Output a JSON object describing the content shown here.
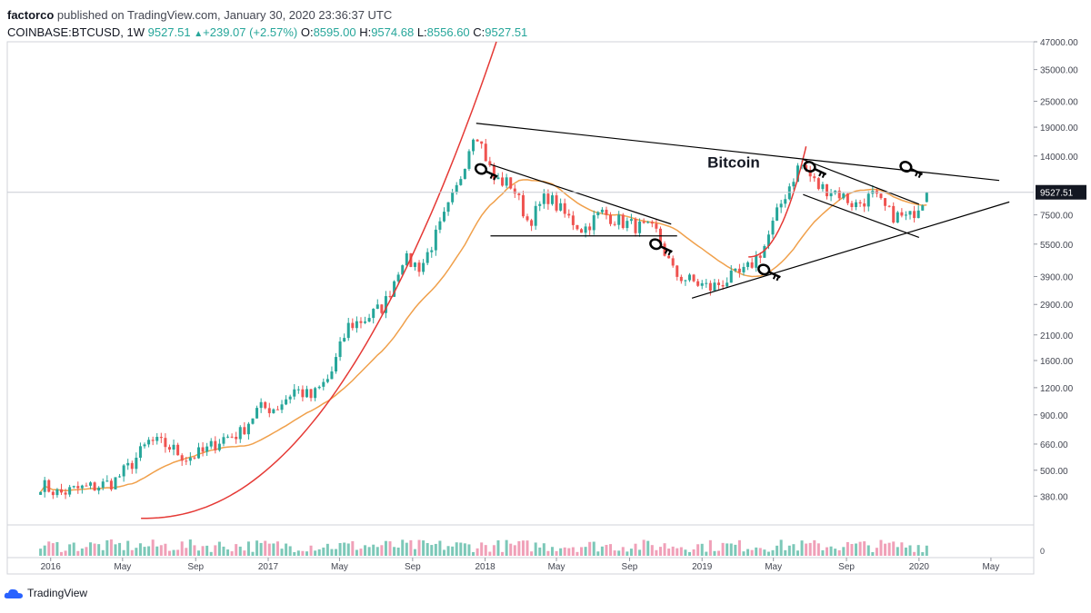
{
  "header": {
    "author": "factorco",
    "published_text": "published on TradingView.com, January 30, 2020 23:36:37 UTC",
    "symbol": "COINBASE:BTCUSD,",
    "interval": "1W",
    "last": "9527.51",
    "change": "+239.07 (+2.57%)",
    "open_label": "O:",
    "open": "8595.00",
    "high_label": "H:",
    "high": "9574.68",
    "low_label": "L:",
    "low": "8556.60",
    "close_label": "C:",
    "close": "9527.51"
  },
  "footer": {
    "brand": "TradingView"
  },
  "colors": {
    "up": "#26a69a",
    "down": "#ef5350",
    "ma": "#f0a04b",
    "curve": "#e53935",
    "trend": "#000000",
    "grid": "#e8e8e8",
    "price_tag_bg": "#131722",
    "volume_up": "#7cc8b8",
    "volume_down": "#f0a0b8"
  },
  "chart_data": {
    "type": "candlestick",
    "scale": "log",
    "ylim": [
      280,
      47000
    ],
    "y_ticks": [
      "47000.00",
      "35000.00",
      "25000.00",
      "19000.00",
      "14000.00",
      "7500.00",
      "5500.00",
      "3900.00",
      "2900.00",
      "2100.00",
      "1600.00",
      "1200.00",
      "900.00",
      "660.00",
      "500.00",
      "380.00"
    ],
    "x_ticks": [
      "2016",
      "May",
      "Sep",
      "2017",
      "May",
      "Sep",
      "2018",
      "May",
      "Sep",
      "2019",
      "May",
      "Sep",
      "2020",
      "May"
    ],
    "x_tick_dates": [
      "2016-01",
      "2016-05",
      "2016-09",
      "2017-01",
      "2017-05",
      "2017-09",
      "2018-01",
      "2018-05",
      "2018-09",
      "2019-01",
      "2019-05",
      "2019-09",
      "2020-01",
      "2020-05"
    ],
    "last_price": "9527.51",
    "annotation": "Bitcoin",
    "volume_axis_label": "0",
    "close_path": [
      [
        "2015-12",
        430
      ],
      [
        "2016-01",
        390
      ],
      [
        "2016-02",
        410
      ],
      [
        "2016-03",
        420
      ],
      [
        "2016-04",
        440
      ],
      [
        "2016-05",
        530
      ],
      [
        "2016-06",
        680
      ],
      [
        "2016-07",
        650
      ],
      [
        "2016-08",
        570
      ],
      [
        "2016-09",
        605
      ],
      [
        "2016-10",
        700
      ],
      [
        "2016-11",
        740
      ],
      [
        "2016-12",
        960
      ],
      [
        "2017-01",
        970
      ],
      [
        "2017-02",
        1180
      ],
      [
        "2017-03",
        1080
      ],
      [
        "2017-04",
        1350
      ],
      [
        "2017-05",
        2300
      ],
      [
        "2017-06",
        2500
      ],
      [
        "2017-07",
        2870
      ],
      [
        "2017-08",
        4700
      ],
      [
        "2017-09",
        4300
      ],
      [
        "2017-10",
        6400
      ],
      [
        "2017-11",
        10000
      ],
      [
        "2017-12",
        19000
      ],
      [
        "2018-01",
        11000
      ],
      [
        "2018-02",
        10300
      ],
      [
        "2018-03",
        6900
      ],
      [
        "2018-04",
        9200
      ],
      [
        "2018-05",
        7500
      ],
      [
        "2018-06",
        6400
      ],
      [
        "2018-07",
        7700
      ],
      [
        "2018-08",
        7000
      ],
      [
        "2018-09",
        6600
      ],
      [
        "2018-10",
        6300
      ],
      [
        "2018-11",
        4000
      ],
      [
        "2018-12",
        3700
      ],
      [
        "2019-01",
        3450
      ],
      [
        "2019-02",
        3800
      ],
      [
        "2019-03",
        4100
      ],
      [
        "2019-04",
        5300
      ],
      [
        "2019-05",
        8600
      ],
      [
        "2019-06",
        13000
      ],
      [
        "2019-07",
        10100
      ],
      [
        "2019-08",
        9600
      ],
      [
        "2019-09",
        8300
      ],
      [
        "2019-10",
        9200
      ],
      [
        "2019-11",
        7500
      ],
      [
        "2019-12",
        7200
      ],
      [
        "2020-01",
        9527.51
      ]
    ],
    "trendlines": [
      {
        "from": [
          "2017-12-17",
          19800
        ],
        "to": [
          "2020-05-15",
          10800
        ]
      },
      {
        "from": [
          "2018-12-15",
          3100
        ],
        "to": [
          "2020-06-01",
          8600
        ]
      },
      {
        "from": [
          "2018-01-10",
          6000
        ],
        "to": [
          "2018-11-20",
          6000
        ]
      },
      {
        "from": [
          "2018-01-10",
          12800
        ],
        "to": [
          "2018-11-10",
          6800
        ]
      },
      {
        "from": [
          "2019-06-20",
          9300
        ],
        "to": [
          "2020-01-01",
          5900
        ]
      },
      {
        "from": [
          "2019-06-20",
          13500
        ],
        "to": [
          "2020-01-01",
          8400
        ]
      }
    ]
  }
}
